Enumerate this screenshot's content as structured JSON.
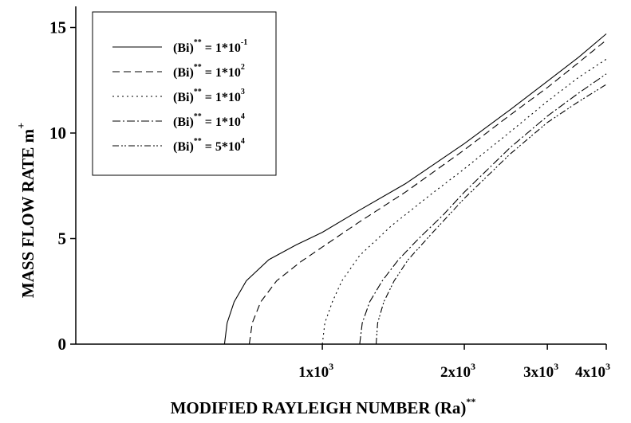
{
  "chart_data": {
    "type": "line",
    "title": "",
    "xlabel": "MODIFIED RAYLEIGH NUMBER",
    "xlabel_var": "(Ra)",
    "xlabel_sup": "**",
    "ylabel": "MASS FLOW RATE",
    "ylabel_var": "m",
    "ylabel_sup": "+",
    "x_scale": "log",
    "xlim": [
      300,
      4000
    ],
    "ylim": [
      0,
      16
    ],
    "x_ticks": [
      {
        "value": 1000,
        "base": "1x10",
        "exp": "3"
      },
      {
        "value": 2000,
        "base": "2x10",
        "exp": "3"
      },
      {
        "value": 3000,
        "base": "3x10",
        "exp": "3"
      },
      {
        "value": 4000,
        "base": "4x10",
        "exp": "3"
      }
    ],
    "y_ticks": [
      {
        "value": 0,
        "label": "0"
      },
      {
        "value": 5,
        "label": "5"
      },
      {
        "value": 10,
        "label": "10"
      },
      {
        "value": 15,
        "label": "15"
      }
    ],
    "grid": false,
    "legend_position": "top-left",
    "series": [
      {
        "name": "(Bi)** = 1*10-1",
        "legend_main": "(Bi)",
        "legend_sup": "**",
        "legend_eq": "= 1*10",
        "legend_exp": "-1",
        "dash": "",
        "points": [
          [
            620,
            0
          ],
          [
            628,
            1
          ],
          [
            650,
            2
          ],
          [
            690,
            3
          ],
          [
            770,
            4
          ],
          [
            880,
            4.7
          ],
          [
            1000,
            5.3
          ],
          [
            1200,
            6.35
          ],
          [
            1500,
            7.6
          ],
          [
            2000,
            9.5
          ],
          [
            2500,
            11.1
          ],
          [
            3000,
            12.45
          ],
          [
            3500,
            13.6
          ],
          [
            4000,
            14.7
          ]
        ]
      },
      {
        "name": "(Bi)** = 1*10^2",
        "legend_main": "(Bi)",
        "legend_sup": "**",
        "legend_eq": "= 1*10",
        "legend_exp": "2",
        "dash": "9,5",
        "points": [
          [
            700,
            0
          ],
          [
            710,
            1
          ],
          [
            740,
            2
          ],
          [
            800,
            3
          ],
          [
            900,
            3.9
          ],
          [
            1000,
            4.6
          ],
          [
            1200,
            5.8
          ],
          [
            1500,
            7.2
          ],
          [
            2000,
            9.2
          ],
          [
            2500,
            10.85
          ],
          [
            3000,
            12.15
          ],
          [
            3500,
            13.35
          ],
          [
            4000,
            14.4
          ]
        ]
      },
      {
        "name": "(Bi)** = 1*10^3",
        "legend_main": "(Bi)",
        "legend_sup": "**",
        "legend_eq": "= 1*10",
        "legend_exp": "3",
        "dash": "2,4",
        "points": [
          [
            1000,
            0
          ],
          [
            1012,
            1
          ],
          [
            1050,
            2
          ],
          [
            1100,
            3
          ],
          [
            1200,
            4.2
          ],
          [
            1400,
            5.6
          ],
          [
            1700,
            7.1
          ],
          [
            2000,
            8.3
          ],
          [
            2500,
            10.05
          ],
          [
            3000,
            11.5
          ],
          [
            3500,
            12.65
          ],
          [
            4000,
            13.5
          ]
        ]
      },
      {
        "name": "(Bi)** = 1*10^4",
        "legend_main": "(Bi)",
        "legend_sup": "**",
        "legend_eq": "= 1*10",
        "legend_exp": "4",
        "dash": "10,3,2,3",
        "points": [
          [
            1200,
            0
          ],
          [
            1215,
            1
          ],
          [
            1260,
            2
          ],
          [
            1340,
            3
          ],
          [
            1450,
            4
          ],
          [
            1600,
            5
          ],
          [
            1800,
            6.1
          ],
          [
            2000,
            7.2
          ],
          [
            2500,
            9.3
          ],
          [
            3000,
            10.8
          ],
          [
            3500,
            11.9
          ],
          [
            4000,
            12.8
          ]
        ]
      },
      {
        "name": "(Bi)** = 5*10^4",
        "legend_main": "(Bi)",
        "legend_sup": "**",
        "legend_eq": "= 5*10",
        "legend_exp": "4",
        "dash": "8,3,2,2,2,3",
        "points": [
          [
            1300,
            0
          ],
          [
            1310,
            1
          ],
          [
            1350,
            2
          ],
          [
            1420,
            3
          ],
          [
            1520,
            4
          ],
          [
            1700,
            5.2
          ],
          [
            2000,
            6.9
          ],
          [
            2500,
            9.0
          ],
          [
            3000,
            10.5
          ],
          [
            3500,
            11.5
          ],
          [
            4000,
            12.3
          ]
        ]
      }
    ]
  }
}
